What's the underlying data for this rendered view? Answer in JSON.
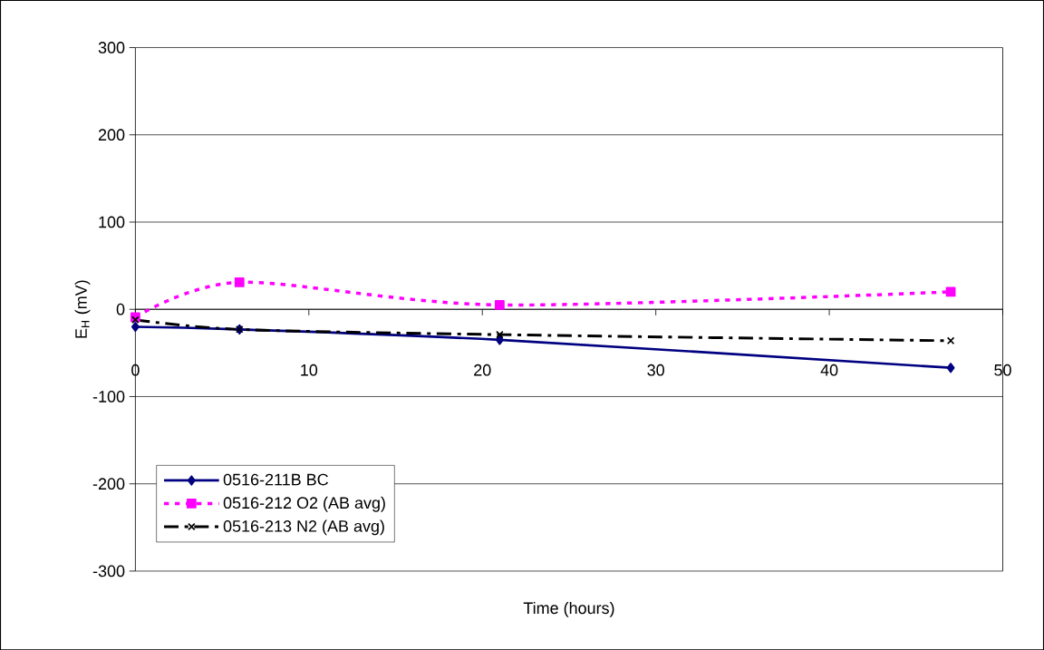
{
  "chart_data": {
    "type": "line",
    "xlabel": "Time (hours)",
    "ylabel": "E$_{H}$ (mV)",
    "x": [
      0,
      6,
      21,
      47
    ],
    "series": [
      {
        "name": "0516-211B BC",
        "color": "#000080",
        "values": [
          -20,
          -23,
          -35,
          -67
        ],
        "marker": "diamond",
        "line_style": "solid"
      },
      {
        "name": "0516-212 O2 (AB avg)",
        "color": "#ff00ff",
        "values": [
          -9,
          31,
          5,
          20
        ],
        "marker": "square",
        "line_style": "dotted"
      },
      {
        "name": "0516-213 N2 (AB avg)",
        "color": "#000000",
        "values": [
          -12,
          -23,
          -29,
          -36
        ],
        "marker": "cross",
        "line_style": "dashed"
      }
    ],
    "xlim": [
      0,
      50
    ],
    "xticks": [
      0,
      10,
      20,
      30,
      40,
      50
    ],
    "ylim": [
      -300,
      300
    ],
    "yticks": [
      -300,
      -200,
      -100,
      0,
      100,
      200,
      300
    ],
    "grid": "y",
    "legend": "bottom left"
  }
}
